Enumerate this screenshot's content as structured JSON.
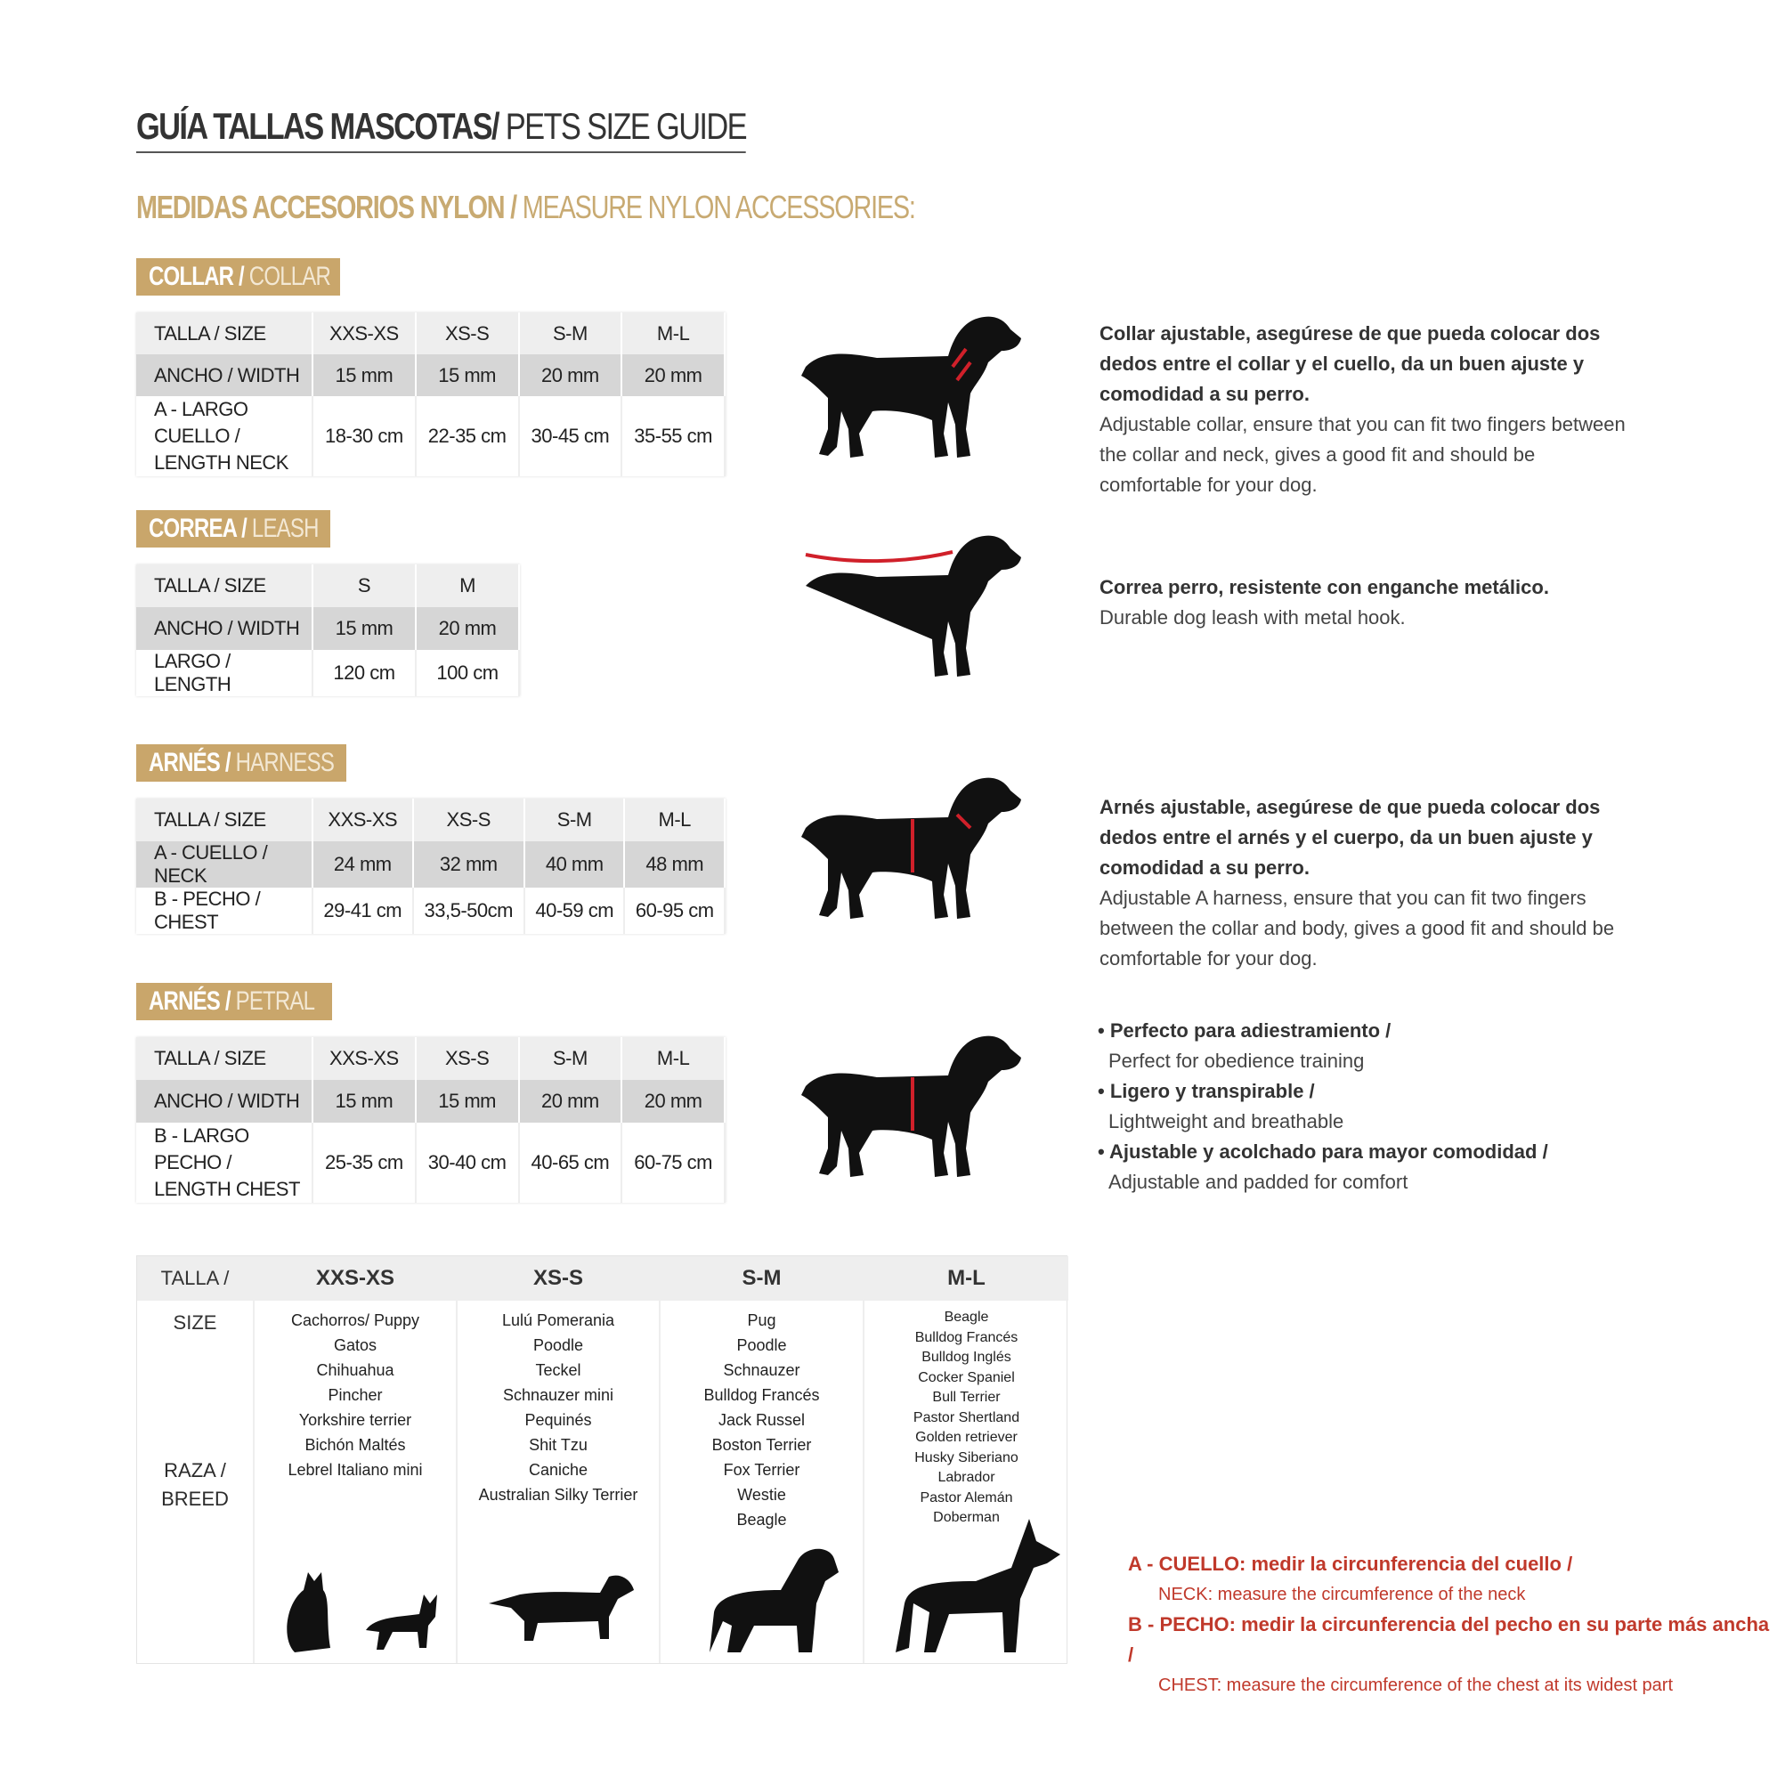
{
  "title": {
    "es": "GUÍA TALLAS MASCOTAS/",
    "en": "PETS SIZE GUIDE"
  },
  "subtitle": {
    "es": "MEDIDAS ACCESORIOS NYLON /",
    "en": "MEASURE NYLON ACCESSORIES:"
  },
  "collar": {
    "badge_es": "COLLAR /",
    "badge_en": "COLLAR",
    "header": [
      "TALLA / SIZE",
      "XXS-XS",
      "XS-S",
      "S-M",
      "M-L"
    ],
    "rows": [
      [
        "ANCHO / WIDTH",
        "15 mm",
        "15 mm",
        "20 mm",
        "20 mm"
      ],
      [
        "A - LARGO CUELLO / LENGTH NECK",
        "18-30 cm",
        "22-35 cm",
        "30-45 cm",
        "35-55 cm"
      ]
    ],
    "desc_es": "Collar ajustable, asegúrese de que pueda colocar dos dedos entre el collar y el cuello, da un buen ajuste y comodidad a su perro.",
    "desc_en": "Adjustable collar, ensure that you can fit two fingers between the collar and neck, gives a good fit and should be comfortable for your dog."
  },
  "leash": {
    "badge_es": "CORREA /",
    "badge_en": "LEASH",
    "header": [
      "TALLA / SIZE",
      "S",
      "M"
    ],
    "rows": [
      [
        "ANCHO / WIDTH",
        "15 mm",
        "20 mm"
      ],
      [
        "LARGO / LENGTH",
        "120 cm",
        "100 cm"
      ]
    ],
    "desc_es": "Correa perro, resistente con enganche metálico.",
    "desc_en": "Durable dog leash with metal hook."
  },
  "harness": {
    "badge_es": "ARNÉS /",
    "badge_en": "HARNESS",
    "header": [
      "TALLA / SIZE",
      "XXS-XS",
      "XS-S",
      "S-M",
      "M-L"
    ],
    "rows": [
      [
        "A - CUELLO / NECK",
        "24 mm",
        "32 mm",
        "40 mm",
        "48 mm"
      ],
      [
        "B - PECHO / CHEST",
        "29-41 cm",
        "33,5-50cm",
        "40-59 cm",
        "60-95 cm"
      ]
    ],
    "desc_es": "Arnés ajustable, asegúrese de que pueda colocar dos dedos entre el arnés y el cuerpo, da un buen ajuste y comodidad a su perro.",
    "desc_en": "Adjustable A harness, ensure that you can fit two fingers between the collar and body, gives a good fit and should be comfortable for your dog."
  },
  "petral": {
    "badge_es": "ARNÉS /",
    "badge_en": "PETRAL",
    "header": [
      "TALLA / SIZE",
      "XXS-XS",
      "XS-S",
      "S-M",
      "M-L"
    ],
    "rows": [
      [
        "ANCHO / WIDTH",
        "15 mm",
        "15 mm",
        "20 mm",
        "20 mm"
      ],
      [
        "B - LARGO PECHO / LENGTH CHEST",
        "25-35 cm",
        "30-40 cm",
        "40-65 cm",
        "60-75 cm"
      ]
    ],
    "bullets": [
      {
        "es": "Perfecto para adiestramiento /",
        "en": "Perfect for obedience training"
      },
      {
        "es": "Ligero y transpirable /",
        "en": "Lightweight and breathable"
      },
      {
        "es": "Ajustable y acolchado para mayor comodidad /",
        "en": "Adjustable and padded for comfort"
      }
    ]
  },
  "breeds": {
    "size_label": "TALLA /  SIZE",
    "row_label": "RAZA / BREED",
    "columns": [
      {
        "size": "XXS-XS",
        "list": [
          "Cachorros/ Puppy",
          "Gatos",
          "Chihuahua",
          "Pincher",
          "Yorkshire terrier",
          "Bichón Maltés",
          "Lebrel Italiano mini"
        ]
      },
      {
        "size": "XS-S",
        "list": [
          "Lulú Pomerania",
          "Poodle",
          "Teckel",
          "Schnauzer mini",
          "Pequinés",
          "Shit Tzu",
          "Caniche",
          "Australian Silky Terrier"
        ]
      },
      {
        "size": "S-M",
        "list": [
          "Pug",
          "Poodle",
          "Schnauzer",
          "Bulldog Francés",
          "Jack Russel",
          "Boston Terrier",
          "Fox Terrier",
          "Westie",
          "Beagle"
        ]
      },
      {
        "size": "M-L",
        "list": [
          "Beagle",
          "Bulldog Francés",
          "Bulldog Inglés",
          "Cocker Spaniel",
          "Bull Terrier",
          "Pastor Shertland",
          "Golden retriever",
          "Husky Siberiano",
          "Labrador",
          "Pastor Alemán",
          "Doberman"
        ]
      }
    ]
  },
  "notes": [
    {
      "es": "A - CUELLO: medir la circunferencia del cuello /",
      "en": "NECK: measure the circumference of the neck"
    },
    {
      "es": "B - PECHO: medir la circunferencia del pecho en su parte más ancha /",
      "en": "CHEST: measure the circumference of the chest at its widest part"
    }
  ],
  "colors": {
    "gold": "#c9a66b",
    "accent_red": "#c0392b",
    "measure_red": "#d0202a"
  }
}
